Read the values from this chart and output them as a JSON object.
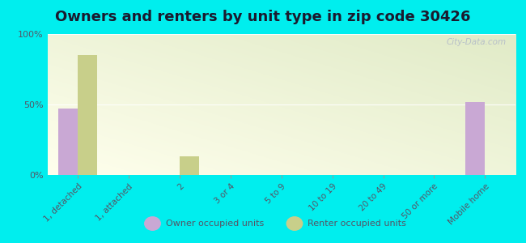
{
  "title": "Owners and renters by unit type in zip code 30426",
  "categories": [
    "1, detached",
    "1, attached",
    "2",
    "3 or 4",
    "5 to 9",
    "10 to 19",
    "20 to 49",
    "50 or more",
    "Mobile home"
  ],
  "owner_values": [
    47,
    0,
    0,
    0,
    0,
    0,
    0,
    0,
    52
  ],
  "renter_values": [
    85,
    0,
    13,
    0,
    0,
    0,
    0,
    0,
    0
  ],
  "owner_color": "#c9a8d4",
  "renter_color": "#c8cf8a",
  "background_color": "#00eeee",
  "plot_bg_top": "#f5fae8",
  "plot_bg_bottom": "#deecc0",
  "ylim": [
    0,
    100
  ],
  "yticks": [
    0,
    50,
    100
  ],
  "ytick_labels": [
    "0%",
    "50%",
    "100%"
  ],
  "bar_width": 0.38,
  "title_fontsize": 13,
  "title_color": "#1a1a2e",
  "tick_color": "#555566",
  "legend_owner": "Owner occupied units",
  "legend_renter": "Renter occupied units",
  "watermark": "City-Data.com"
}
